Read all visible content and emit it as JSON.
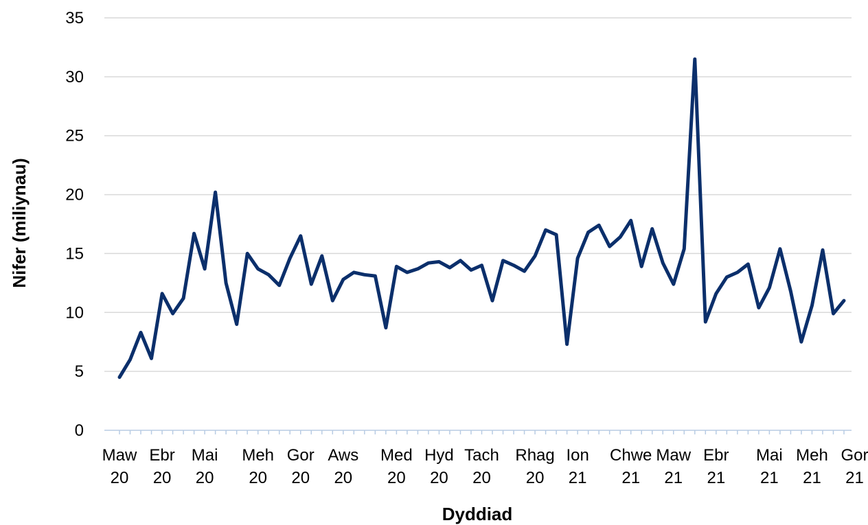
{
  "chart_data": {
    "type": "line",
    "title": "",
    "xlabel": "Dyddiad",
    "ylabel": "Nifer (miliynau)",
    "ylim": [
      0,
      35
    ],
    "yticks": [
      0,
      5,
      10,
      15,
      20,
      25,
      30,
      35
    ],
    "grid": true,
    "legend": "none",
    "line_color": "#0b2f6b",
    "grid_color": "#d9d9d9",
    "minor_tick_color": "#b8cce4",
    "x_tick_labels": [
      {
        "index": 0,
        "lines": [
          "Maw",
          "20"
        ]
      },
      {
        "index": 4,
        "lines": [
          "Ebr",
          "20"
        ]
      },
      {
        "index": 8,
        "lines": [
          "Mai",
          "20"
        ]
      },
      {
        "index": 13,
        "lines": [
          "Meh",
          "20"
        ]
      },
      {
        "index": 17,
        "lines": [
          "Gor",
          "20"
        ]
      },
      {
        "index": 21,
        "lines": [
          "Aws",
          "20"
        ]
      },
      {
        "index": 26,
        "lines": [
          "Med",
          "20"
        ]
      },
      {
        "index": 30,
        "lines": [
          "Hyd",
          "20"
        ]
      },
      {
        "index": 34,
        "lines": [
          "Tach",
          "20"
        ]
      },
      {
        "index": 39,
        "lines": [
          "Rhag",
          "20"
        ]
      },
      {
        "index": 43,
        "lines": [
          "Ion",
          "21"
        ]
      },
      {
        "index": 48,
        "lines": [
          "Chwe",
          "21"
        ]
      },
      {
        "index": 52,
        "lines": [
          "Maw",
          "21"
        ]
      },
      {
        "index": 56,
        "lines": [
          "Ebr",
          "21"
        ]
      },
      {
        "index": 61,
        "lines": [
          "Mai",
          "21"
        ]
      },
      {
        "index": 65,
        "lines": [
          "Meh",
          "21"
        ]
      },
      {
        "index": 69,
        "lines": [
          "Gor",
          "21"
        ]
      }
    ],
    "series": [
      {
        "values": [
          4.5,
          6.0,
          8.3,
          6.1,
          11.6,
          9.9,
          11.2,
          16.7,
          13.7,
          20.2,
          12.5,
          9.0,
          15.0,
          13.7,
          13.2,
          12.3,
          14.6,
          16.5,
          12.4,
          14.8,
          11.0,
          12.8,
          13.4,
          13.2,
          13.1,
          8.7,
          13.9,
          13.4,
          13.7,
          14.2,
          14.3,
          13.8,
          14.4,
          13.6,
          14.0,
          11.0,
          14.4,
          14.0,
          13.5,
          14.8,
          17.0,
          16.6,
          7.3,
          14.6,
          16.8,
          17.4,
          15.6,
          16.4,
          17.8,
          13.9,
          17.1,
          14.2,
          12.4,
          15.4,
          31.5,
          9.2,
          11.6,
          13.0,
          13.4,
          14.1,
          10.4,
          12.1,
          15.4,
          11.8,
          7.5,
          10.6,
          15.3,
          9.9,
          11.0
        ]
      }
    ]
  }
}
